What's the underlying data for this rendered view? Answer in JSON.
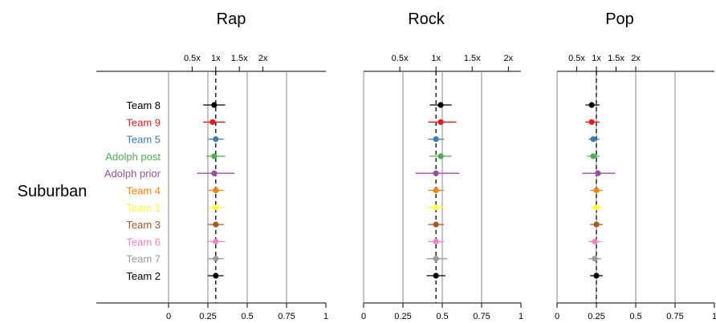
{
  "chart_data": {
    "type": "scatter",
    "row_label": "Suburban",
    "top_ticks": [
      "0.5x",
      "1x",
      "1.5x",
      "2x"
    ],
    "top_tick_values": [
      0.5,
      1,
      1.5,
      2
    ],
    "bottom_ticks": [
      "0",
      "0.25",
      "0.5",
      "0.75",
      "1"
    ],
    "bottom_tick_values": [
      0,
      0.25,
      0.5,
      0.75,
      1
    ],
    "xlim": [
      0,
      1
    ],
    "teams": [
      {
        "name": "Team 8",
        "color": "#000000"
      },
      {
        "name": "Team 9",
        "color": "#E41A1C"
      },
      {
        "name": "Team 5",
        "color": "#377EB8"
      },
      {
        "name": "Adolph post",
        "color": "#4DAF4A"
      },
      {
        "name": "Adolph prior",
        "color": "#984EA3"
      },
      {
        "name": "Team 4",
        "color": "#FF7F00"
      },
      {
        "name": "Team 1",
        "color": "#FFFF33"
      },
      {
        "name": "Team 3",
        "color": "#A65628"
      },
      {
        "name": "Team 6",
        "color": "#F781BF"
      },
      {
        "name": "Team 7",
        "color": "#999999"
      },
      {
        "name": "Team 2",
        "color": "#000000"
      }
    ],
    "panels": [
      {
        "title": "Rap",
        "reference": 0.3,
        "points": [
          {
            "est": 0.29,
            "low": 0.22,
            "high": 0.36
          },
          {
            "est": 0.28,
            "low": 0.22,
            "high": 0.36
          },
          {
            "est": 0.3,
            "low": 0.25,
            "high": 0.35
          },
          {
            "est": 0.29,
            "low": 0.24,
            "high": 0.36
          },
          {
            "est": 0.29,
            "low": 0.18,
            "high": 0.42
          },
          {
            "est": 0.3,
            "low": 0.25,
            "high": 0.35
          },
          {
            "est": 0.3,
            "low": 0.25,
            "high": 0.35
          },
          {
            "est": 0.3,
            "low": 0.25,
            "high": 0.35
          },
          {
            "est": 0.3,
            "low": 0.25,
            "high": 0.36
          },
          {
            "est": 0.3,
            "low": 0.25,
            "high": 0.35
          },
          {
            "est": 0.3,
            "low": 0.25,
            "high": 0.35
          }
        ]
      },
      {
        "title": "Rock",
        "reference": 0.46,
        "points": [
          {
            "est": 0.49,
            "low": 0.42,
            "high": 0.56
          },
          {
            "est": 0.49,
            "low": 0.41,
            "high": 0.59
          },
          {
            "est": 0.46,
            "low": 0.41,
            "high": 0.51
          },
          {
            "est": 0.49,
            "low": 0.42,
            "high": 0.56
          },
          {
            "est": 0.46,
            "low": 0.33,
            "high": 0.61
          },
          {
            "est": 0.46,
            "low": 0.41,
            "high": 0.51
          },
          {
            "est": 0.46,
            "low": 0.41,
            "high": 0.51
          },
          {
            "est": 0.46,
            "low": 0.41,
            "high": 0.51
          },
          {
            "est": 0.46,
            "low": 0.41,
            "high": 0.51
          },
          {
            "est": 0.46,
            "low": 0.4,
            "high": 0.53
          },
          {
            "est": 0.46,
            "low": 0.4,
            "high": 0.52
          }
        ]
      },
      {
        "title": "Pop",
        "reference": 0.25,
        "points": [
          {
            "est": 0.22,
            "low": 0.18,
            "high": 0.27
          },
          {
            "est": 0.22,
            "low": 0.18,
            "high": 0.27
          },
          {
            "est": 0.23,
            "low": 0.2,
            "high": 0.27
          },
          {
            "est": 0.23,
            "low": 0.19,
            "high": 0.27
          },
          {
            "est": 0.26,
            "low": 0.16,
            "high": 0.37
          },
          {
            "est": 0.25,
            "low": 0.21,
            "high": 0.29
          },
          {
            "est": 0.25,
            "low": 0.21,
            "high": 0.29
          },
          {
            "est": 0.25,
            "low": 0.21,
            "high": 0.29
          },
          {
            "est": 0.24,
            "low": 0.2,
            "high": 0.28
          },
          {
            "est": 0.24,
            "low": 0.2,
            "high": 0.28
          },
          {
            "est": 0.25,
            "low": 0.21,
            "high": 0.29
          }
        ]
      }
    ]
  }
}
